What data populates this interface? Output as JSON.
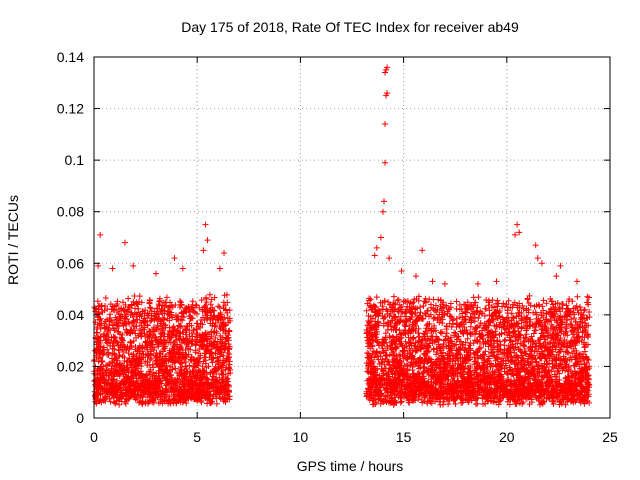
{
  "chart_data": {
    "type": "scatter",
    "title": "Day 175 of 2018, Rate Of TEC Index for receiver ab49",
    "xlabel": "GPS time / hours",
    "ylabel": "ROTI / TECUs",
    "xlim": [
      0,
      25
    ],
    "ylim": [
      0,
      0.14
    ],
    "xticks": [
      0,
      5,
      10,
      15,
      20,
      25
    ],
    "yticks": [
      0,
      0.02,
      0.04,
      0.06,
      0.08,
      0.1,
      0.12,
      0.14
    ],
    "ytick_labels": [
      "0",
      "0.02",
      "0.04",
      "0.06",
      "0.08",
      "0.1",
      "0.12",
      "0.14"
    ],
    "grid": true,
    "marker": "plus",
    "color": "#ff0000",
    "series": [
      {
        "segments": [
          {
            "x_range": [
              0.0,
              6.6
            ],
            "typical_range": [
              0.008,
              0.045
            ]
          },
          {
            "x_range": [
              13.2,
              24.0
            ],
            "typical_range": [
              0.008,
              0.045
            ]
          }
        ],
        "values": [
          [
            0.3,
            0.071
          ],
          [
            1.5,
            0.068
          ],
          [
            0.2,
            0.059
          ],
          [
            0.9,
            0.058
          ],
          [
            1.9,
            0.059
          ],
          [
            3.0,
            0.056
          ],
          [
            3.9,
            0.062
          ],
          [
            4.3,
            0.058
          ],
          [
            5.4,
            0.075
          ],
          [
            5.5,
            0.069
          ],
          [
            5.3,
            0.065
          ],
          [
            6.3,
            0.064
          ],
          [
            6.1,
            0.058
          ],
          [
            13.6,
            0.063
          ],
          [
            13.7,
            0.066
          ],
          [
            13.9,
            0.07
          ],
          [
            14.0,
            0.08
          ],
          [
            14.05,
            0.084
          ],
          [
            14.1,
            0.099
          ],
          [
            14.1,
            0.114
          ],
          [
            14.15,
            0.125
          ],
          [
            14.2,
            0.126
          ],
          [
            14.1,
            0.134
          ],
          [
            14.15,
            0.135
          ],
          [
            14.2,
            0.136
          ],
          [
            14.3,
            0.062
          ],
          [
            14.9,
            0.057
          ],
          [
            15.9,
            0.065
          ],
          [
            15.6,
            0.055
          ],
          [
            16.4,
            0.053
          ],
          [
            17.0,
            0.052
          ],
          [
            18.6,
            0.052
          ],
          [
            19.5,
            0.053
          ],
          [
            20.5,
            0.075
          ],
          [
            20.6,
            0.072
          ],
          [
            20.4,
            0.071
          ],
          [
            21.4,
            0.067
          ],
          [
            21.5,
            0.062
          ],
          [
            21.7,
            0.06
          ],
          [
            22.6,
            0.059
          ],
          [
            22.4,
            0.055
          ],
          [
            23.4,
            0.053
          ],
          [
            23.9,
            0.047
          ]
        ]
      }
    ]
  }
}
